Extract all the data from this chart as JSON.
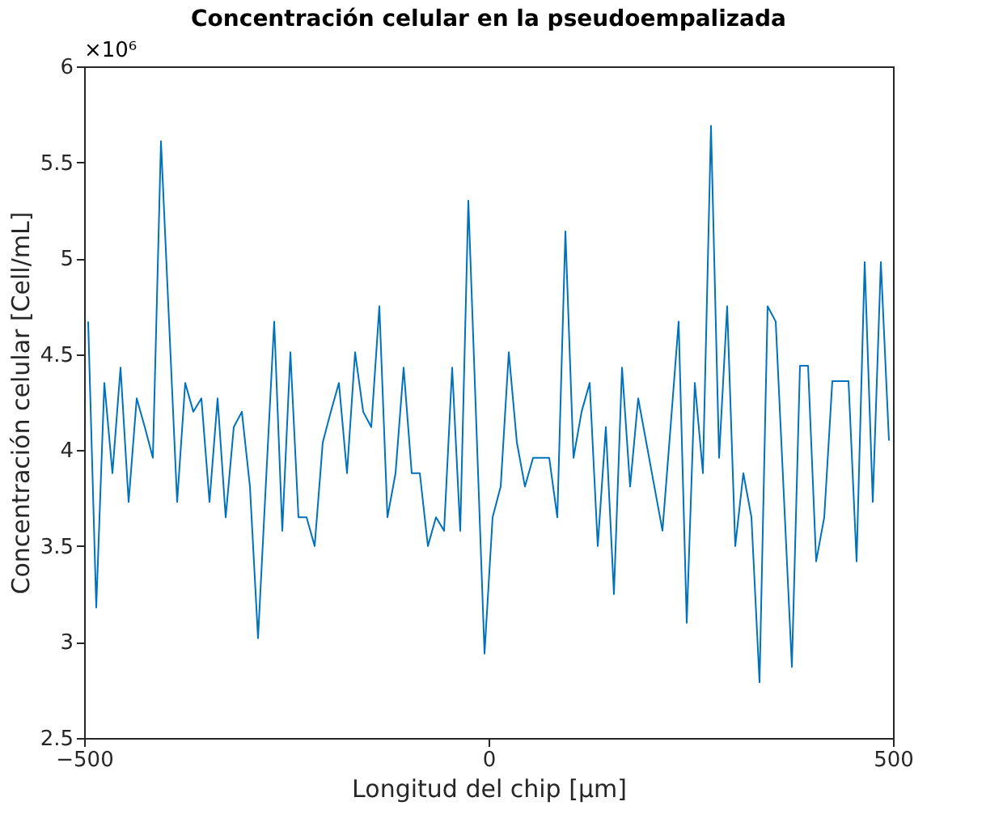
{
  "chart_data": {
    "type": "line",
    "title": "Concentración celular en la pseudoempalizada",
    "xlabel": "Longitud del chip [μm]",
    "ylabel": "Concentración celular [Cell/mL]",
    "annotations": [
      "×10⁶"
    ],
    "x": [
      -495,
      -485,
      -475,
      -465,
      -455,
      -445,
      -435,
      -425,
      -415,
      -405,
      -395,
      -385,
      -375,
      -365,
      -355,
      -345,
      -335,
      -325,
      -315,
      -305,
      -295,
      -285,
      -275,
      -265,
      -255,
      -245,
      -235,
      -225,
      -215,
      -205,
      -195,
      -185,
      -175,
      -165,
      -155,
      -145,
      -135,
      -125,
      -115,
      -105,
      -95,
      -85,
      -75,
      -65,
      -55,
      -45,
      -35,
      -25,
      -15,
      -5,
      5,
      15,
      25,
      35,
      45,
      55,
      65,
      75,
      85,
      95,
      105,
      115,
      125,
      135,
      145,
      155,
      165,
      175,
      185,
      195,
      205,
      215,
      225,
      235,
      245,
      255,
      265,
      275,
      285,
      295,
      305,
      315,
      325,
      335,
      345,
      355,
      365,
      375,
      385,
      395,
      405,
      415,
      425,
      435,
      445,
      455,
      465,
      475,
      485,
      495
    ],
    "series": [
      {
        "color": "#0072bd",
        "values": [
          4.67,
          3.18,
          4.35,
          3.88,
          4.43,
          3.73,
          4.27,
          4.12,
          3.96,
          5.61,
          4.67,
          3.73,
          4.35,
          4.2,
          4.27,
          3.73,
          4.27,
          3.65,
          4.12,
          4.2,
          3.81,
          3.02,
          3.85,
          4.67,
          3.58,
          4.51,
          3.65,
          3.65,
          3.5,
          4.04,
          4.2,
          4.35,
          3.88,
          4.51,
          4.2,
          4.12,
          4.75,
          3.65,
          3.88,
          4.43,
          3.88,
          3.88,
          3.5,
          3.65,
          3.58,
          4.43,
          3.58,
          5.3,
          4.12,
          2.94,
          3.65,
          3.81,
          4.51,
          4.04,
          3.81,
          3.96,
          3.96,
          3.96,
          3.65,
          5.14,
          3.96,
          4.2,
          4.35,
          3.5,
          4.12,
          3.25,
          4.43,
          3.81,
          4.27,
          4.04,
          3.81,
          3.58,
          4.12,
          4.67,
          3.1,
          4.35,
          3.88,
          5.69,
          3.96,
          4.75,
          3.5,
          3.88,
          3.65,
          2.79,
          4.75,
          4.67,
          3.77,
          2.87,
          4.44,
          4.44,
          3.42,
          3.65,
          4.36,
          4.36,
          4.36,
          3.42,
          4.98,
          3.73,
          4.98,
          4.05
        ]
      }
    ],
    "xlim": [
      -500,
      500
    ],
    "xticks": [
      -500,
      0,
      500
    ],
    "ylim": [
      2.5,
      6
    ],
    "yticks": [
      2.5,
      3,
      3.5,
      4,
      4.5,
      5,
      5.5,
      6
    ],
    "grid": false,
    "marker": "none",
    "line_style": "solid"
  }
}
